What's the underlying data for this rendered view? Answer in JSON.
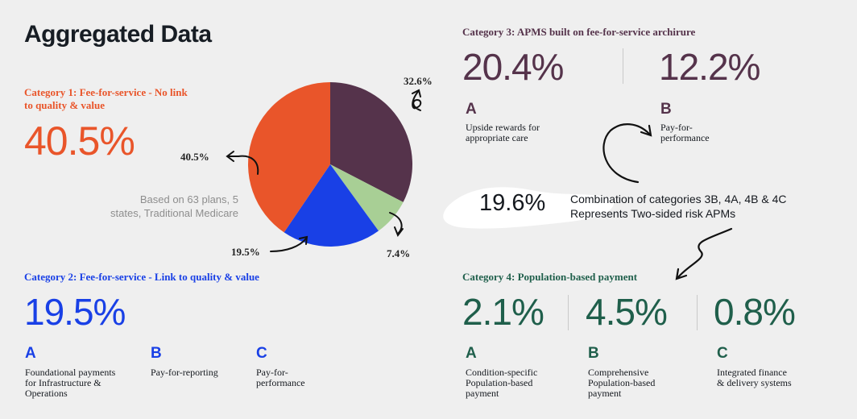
{
  "page": {
    "title": "Aggregated Data"
  },
  "colors": {
    "orange": "#e9552a",
    "blue": "#1940e6",
    "plum": "#55334b",
    "green": "#a8cf95",
    "darkgreen": "#1f5f4b"
  },
  "category1": {
    "label_line1": "Category 1: Fee-for-service - No link",
    "label_line2": "to quality & value",
    "value": "40.5%"
  },
  "note": {
    "line1": "Based on 63 plans, 5",
    "line2": "states, Traditional Medicare"
  },
  "chart_data": {
    "type": "pie",
    "title": "Aggregated Data",
    "slices": [
      {
        "name": "Category 3: APMS built on fee-for-service archirure",
        "value": 32.6,
        "label": "32.6%",
        "color": "#55334b"
      },
      {
        "name": "Category 4: Population-based payment",
        "value": 7.4,
        "label": "7.4%",
        "color": "#a8cf95"
      },
      {
        "name": "Category 2: Fee-for-service - Link to quality & value",
        "value": 19.5,
        "label": "19.5%",
        "color": "#1940e6"
      },
      {
        "name": "Category 1: Fee-for-service - No link to quality & value",
        "value": 40.5,
        "label": "40.5%",
        "color": "#e9552a"
      }
    ]
  },
  "category2": {
    "label": "Category 2: Fee-for-service - Link to quality & value",
    "value": "19.5%",
    "items": [
      {
        "letter": "A",
        "desc_lines": [
          "Foundational payments",
          "for Infrastructure &",
          "Operations"
        ]
      },
      {
        "letter": "B",
        "desc_lines": [
          "Pay-for-reporting"
        ]
      },
      {
        "letter": "C",
        "desc_lines": [
          "Pay-for-",
          "performance"
        ]
      }
    ]
  },
  "category3": {
    "label": "Category 3: APMS built on fee-for-service archirure",
    "items": [
      {
        "value": "20.4%",
        "letter": "A",
        "desc_lines": [
          "Upside rewards for",
          "appropriate care"
        ]
      },
      {
        "value": "12.2%",
        "letter": "B",
        "desc_lines": [
          "Pay-for-",
          "performance"
        ]
      }
    ]
  },
  "combination": {
    "value": "19.6%",
    "line1": "Combination of categories 3B, 4A, 4B & 4C",
    "line2": "Represents Two-sided risk APMs"
  },
  "category4": {
    "label": "Category 4: Population-based payment",
    "items": [
      {
        "value": "2.1%",
        "letter": "A",
        "desc_lines": [
          "Condition-specific",
          "Population-based",
          "payment"
        ]
      },
      {
        "value": "4.5%",
        "letter": "B",
        "desc_lines": [
          "Comprehensive",
          "Population-based",
          "payment"
        ]
      },
      {
        "value": "0.8%",
        "letter": "C",
        "desc_lines": [
          "Integrated finance",
          "& delivery systems"
        ]
      }
    ]
  }
}
